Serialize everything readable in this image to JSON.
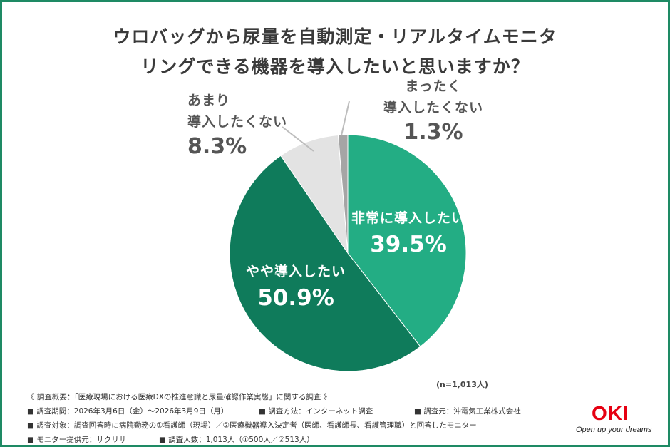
{
  "title": {
    "line1": "ウロバッグから尿量を自動測定・リアルタイムモニタ",
    "line2": "リングできる機器を導入したいと思いますか？"
  },
  "chart_data": {
    "type": "pie",
    "slices": [
      {
        "label": "非常に導入したい",
        "value": 39.5,
        "value_label": "39.5%",
        "color": "#23ad84"
      },
      {
        "label": "やや導入したい",
        "value": 50.9,
        "value_label": "50.9%",
        "color": "#0f7b5b"
      },
      {
        "label_line1": "あまり",
        "label_line2": "導入したくない",
        "value": 8.3,
        "value_label": "8.3%",
        "color": "#e3e3e3"
      },
      {
        "label_line1": "まったく",
        "label_line2": "導入したくない",
        "value": 1.3,
        "value_label": "1.3%",
        "color": "#a5a5a5"
      }
    ],
    "start": "12 o'clock",
    "direction": "clockwise",
    "sample_note": "(n=1,013人)"
  },
  "footer": {
    "summary": "《 調査概要：「医療現場における医療DXの推進意識と尿量確認作業実態」に関する調査 》",
    "period": "■ 調査期間：2026年3月6日（金）～2026年3月9日（月）",
    "method": "■ 調査方法：インターネット調査",
    "organizer": "■ 調査元：沖電気工業株式会社",
    "target": "■ 調査対象：調査回答時に病院勤務の①看護師（現場）／②医療機器導入決定者（医師、看護師長、看護管理職）と回答したモニター",
    "provider": "■ モニター提供元：サクリサ",
    "count": "■ 調査人数：1,013人（①500人／②513人）"
  },
  "logo": {
    "name": "OKI",
    "tagline": "Open up your dreams"
  },
  "colors": {
    "border": "#1e8a64",
    "brand": "#e60012"
  }
}
